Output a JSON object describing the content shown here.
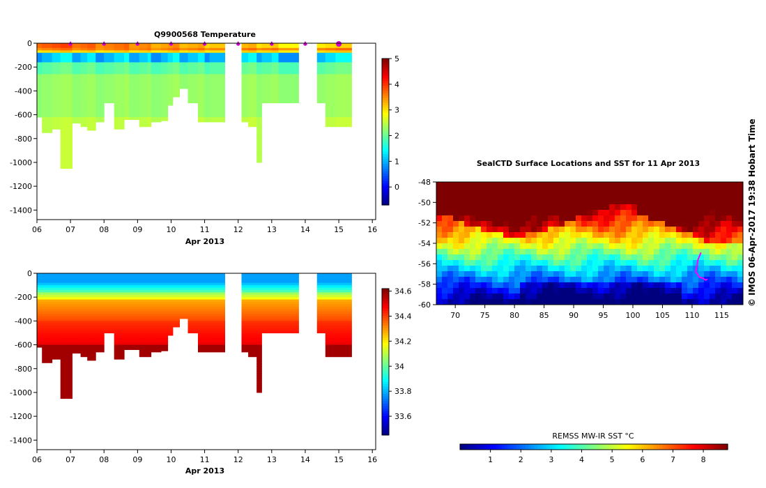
{
  "chart_data": [
    {
      "type": "heatmap",
      "title": "Q9900568  Temperature",
      "xlabel": "Apr 2013",
      "x_ticks": [
        "06",
        "07",
        "08",
        "09",
        "10",
        "11",
        "12",
        "13",
        "14",
        "15",
        "16"
      ],
      "y_ticks": [
        0,
        -200,
        -400,
        -600,
        -800,
        -1000,
        -1200,
        -1400
      ],
      "xlim": [
        6,
        16.1
      ],
      "ylim": [
        -1480,
        0
      ],
      "colorbar": {
        "ticks": [
          0,
          1,
          2,
          3,
          4,
          5
        ],
        "range": [
          -0.7,
          5
        ]
      },
      "profile_day_x": [
        6.0,
        6.15,
        6.45,
        6.7,
        7.05,
        7.3,
        7.5,
        7.75,
        8.0,
        8.3,
        8.6,
        8.75,
        9.05,
        9.3,
        9.4,
        9.7,
        9.9,
        10.05,
        10.25,
        10.5,
        10.8,
        11.0,
        11.15
      ],
      "profile_max_depth_m": [
        -620,
        -750,
        -720,
        -1050,
        -670,
        -700,
        -730,
        -660,
        -500,
        -720,
        -640,
        -640,
        -700,
        -700,
        -660,
        -650,
        -520,
        -450,
        -380,
        -500,
        -660,
        -660,
        -660
      ],
      "profile_day_x_b": [
        12.1,
        12.3,
        12.55,
        12.7,
        13.0,
        13.2,
        14.35,
        14.6,
        14.9
      ],
      "profile_max_depth_m_b": [
        -660,
        -700,
        -1000,
        -500,
        -500,
        -500,
        -500,
        -700,
        -700
      ],
      "surface_markers_x": [
        7.0,
        8.0,
        9.0,
        10.0,
        11.0,
        12.0,
        13.0,
        14.0
      ],
      "highlight_marker_x": 15.0
    },
    {
      "type": "heatmap",
      "title": "",
      "xlabel": "Apr 2013",
      "x_ticks": [
        "06",
        "07",
        "08",
        "09",
        "10",
        "11",
        "12",
        "13",
        "14",
        "15",
        "16"
      ],
      "y_ticks": [
        0,
        -200,
        -400,
        -600,
        -800,
        -1000,
        -1200,
        -1400
      ],
      "xlim": [
        6,
        16.1
      ],
      "ylim": [
        -1480,
        0
      ],
      "colorbar": {
        "ticks": [
          33.6,
          33.8,
          34,
          34.2,
          34.4,
          34.6
        ],
        "range": [
          33.45,
          34.62
        ]
      }
    },
    {
      "type": "heatmap",
      "title": "SealCTD Surface Locations and SST for 11 Apr 2013",
      "x_ticks": [
        70,
        75,
        80,
        85,
        90,
        95,
        100,
        105,
        110,
        115
      ],
      "y_ticks": [
        -48,
        -50,
        -52,
        -54,
        -56,
        -58,
        -60
      ],
      "xlim": [
        66.8,
        118.6
      ],
      "ylim": [
        -60,
        -48
      ],
      "colorbar": {
        "label": "REMSS MW-IR SST °C",
        "ticks": [
          1,
          2,
          3,
          4,
          5,
          6,
          7,
          8
        ],
        "range": [
          0,
          8.8
        ]
      },
      "track_lon": [
        111.5,
        111.0,
        110.8,
        110.6,
        110.9,
        111.2,
        111.8,
        112.3,
        112.6
      ],
      "track_lat": [
        -54.9,
        -55.6,
        -56.3,
        -56.8,
        -57.0,
        -57.3,
        -57.4,
        -57.6,
        -57.5
      ]
    }
  ],
  "side_label": "© IMOS 06-Apr-2017 19:38 Hobart Time",
  "colors": {
    "jet": [
      "#00007f",
      "#0000ff",
      "#007fff",
      "#00ffff",
      "#7fff7f",
      "#ffff00",
      "#ff7f00",
      "#ff0000",
      "#7f0000"
    ],
    "marker": "#cc00cc",
    "track": "#ff00ff"
  }
}
